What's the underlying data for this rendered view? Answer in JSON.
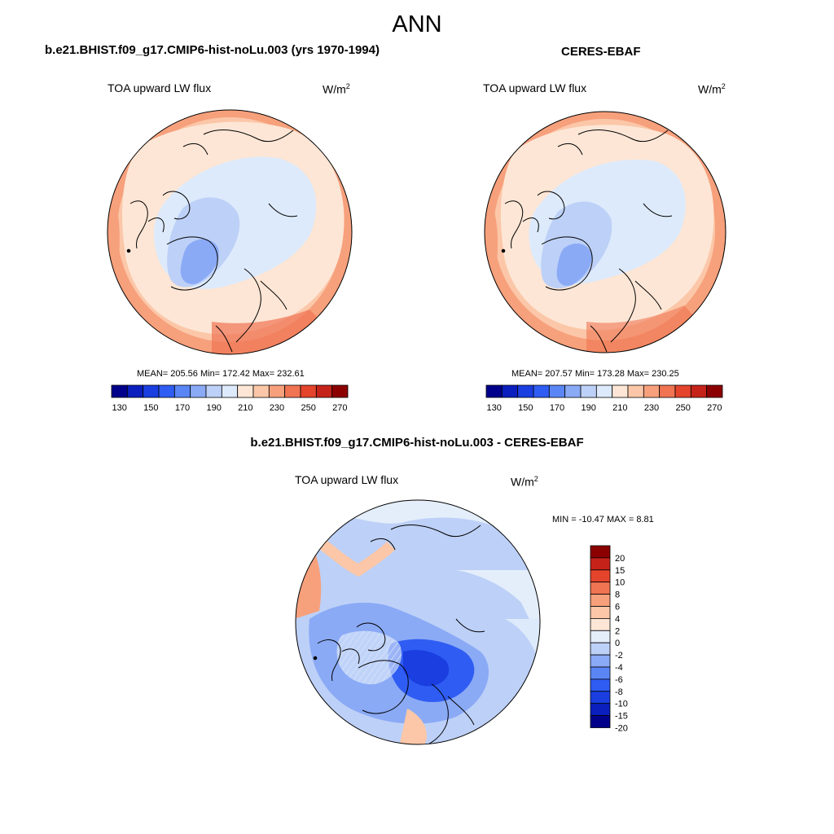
{
  "main_title": "ANN",
  "case_title": "b.e21.BHIST.f09_g17.CMIP6-hist-noLu.003 (yrs 1970-1994)",
  "obs_title": "CERES-EBAF",
  "diff_title": "b.e21.BHIST.f09_g17.CMIP6-hist-noLu.003 - CERES-EBAF",
  "colors": {
    "mean_scale": [
      "#00008b",
      "#0a1fbd",
      "#1a3ee0",
      "#2f5cf2",
      "#5a86f5",
      "#8aaaf6",
      "#bdd0f7",
      "#ddeafb",
      "#fde6d5",
      "#fbc7a8",
      "#f7a07c",
      "#f07452",
      "#e5442c",
      "#c5231a",
      "#8b0000"
    ],
    "diff_scale": [
      "#00008b",
      "#0a1fbd",
      "#1a3ee0",
      "#2f5cf2",
      "#5a86f5",
      "#8aaaf6",
      "#bdd0f7",
      "#e4eefb",
      "#fde6d5",
      "#fbc7a8",
      "#f7a07c",
      "#f07452",
      "#e5442c",
      "#c5231a",
      "#8b0000"
    ]
  },
  "chart_data": [
    {
      "type": "heatmap",
      "projection": "polar-stereographic-north",
      "title": "TOA upward LW flux",
      "units": "W/m",
      "units_sup": "2",
      "stats": {
        "mean": 205.56,
        "min": 172.42,
        "max": 232.61
      },
      "stats_text": "MEAN= 205.56  Min= 172.42  Max= 232.61",
      "colorbar": {
        "levels": [
          130,
          140,
          150,
          160,
          170,
          180,
          190,
          200,
          210,
          220,
          230,
          240,
          250,
          260,
          270
        ],
        "tick_labels": [
          "130",
          "150",
          "170",
          "190",
          "210",
          "230",
          "250",
          "270"
        ]
      }
    },
    {
      "type": "heatmap",
      "projection": "polar-stereographic-north",
      "title": "TOA upward LW flux",
      "units": "W/m",
      "units_sup": "2",
      "stats": {
        "mean": 207.57,
        "min": 173.28,
        "max": 230.25
      },
      "stats_text": "MEAN= 207.57  Min= 173.28  Max= 230.25",
      "colorbar": {
        "levels": [
          130,
          140,
          150,
          160,
          170,
          180,
          190,
          200,
          210,
          220,
          230,
          240,
          250,
          260,
          270
        ],
        "tick_labels": [
          "130",
          "150",
          "170",
          "190",
          "210",
          "230",
          "250",
          "270"
        ]
      }
    },
    {
      "type": "heatmap",
      "projection": "polar-stereographic-north",
      "title": "TOA upward LW flux",
      "units": "W/m",
      "units_sup": "2",
      "stats": {
        "min": -10.47,
        "max": 8.81
      },
      "stats_text": "MIN = -10.47 MAX =   8.81",
      "colorbar": {
        "levels": [
          20,
          15,
          10,
          8,
          6,
          4,
          2,
          0,
          -2,
          -4,
          -6,
          -8,
          -10,
          -15,
          -20
        ],
        "tick_labels": [
          "20",
          "15",
          "10",
          "8",
          "6",
          "4",
          "2",
          "0",
          "-2",
          "-4",
          "-6",
          "-8",
          "-10",
          "-15",
          "-20"
        ]
      }
    }
  ]
}
